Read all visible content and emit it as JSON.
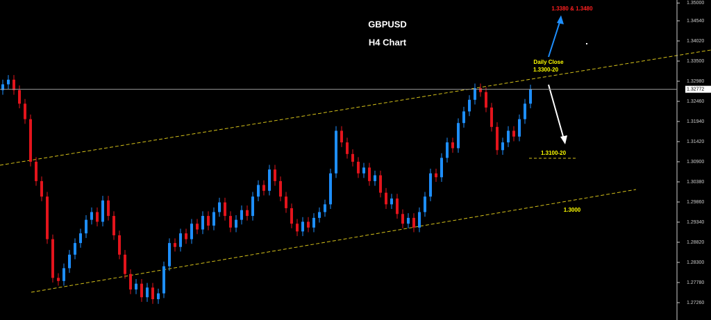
{
  "chart_data": {
    "type": "candlestick",
    "title": "GBPUSD",
    "subtitle": "H4 Chart",
    "up_color": "#1e8fff",
    "down_color": "#e3141c",
    "open": [
      1.3275,
      1.329,
      1.3302,
      1.3275,
      1.324,
      1.32,
      1.309,
      1.304,
      1.3,
      1.289,
      1.279,
      1.2782,
      1.2815,
      1.285,
      1.288,
      1.2905,
      1.294,
      1.296,
      1.2935,
      1.299,
      1.295,
      1.29,
      1.285,
      1.28,
      1.276,
      1.2775,
      1.274,
      1.2765,
      1.2735,
      1.275,
      1.282,
      1.288,
      1.287,
      1.2905,
      1.289,
      1.293,
      1.2915,
      1.295,
      1.2925,
      1.296,
      1.2985,
      1.295,
      1.292,
      1.294,
      1.2965,
      1.295,
      1.3,
      1.303,
      1.3015,
      1.307,
      1.304,
      1.3,
      1.297,
      1.293,
      1.291,
      1.2935,
      1.292,
      1.2945,
      1.296,
      1.298,
      1.306,
      1.317,
      1.314,
      1.311,
      1.309,
      1.306,
      1.3075,
      1.304,
      1.3055,
      1.301,
      1.298,
      1.2995,
      1.2955,
      1.293,
      1.2945,
      1.292,
      1.296,
      1.3,
      1.306,
      1.305,
      1.31,
      1.314,
      1.3125,
      1.319,
      1.322,
      1.325,
      1.328,
      1.327,
      1.323,
      1.318,
      1.312,
      1.314,
      1.317,
      1.3155,
      1.32,
      1.324
    ],
    "high": [
      1.3302,
      1.3314,
      1.3314,
      1.3287,
      1.3252,
      1.3212,
      1.3102,
      1.3052,
      1.3012,
      1.2902,
      1.2802,
      1.2827,
      1.2862,
      1.2892,
      1.2917,
      1.2952,
      1.2972,
      1.2972,
      1.3002,
      1.3002,
      1.2962,
      1.2912,
      1.2862,
      1.2812,
      1.2787,
      1.2787,
      1.2777,
      1.2777,
      1.2762,
      1.2832,
      1.2892,
      1.2892,
      1.2917,
      1.2917,
      1.2942,
      1.2942,
      1.2962,
      1.2962,
      1.2972,
      1.2997,
      1.2997,
      1.2962,
      1.2952,
      1.2977,
      1.2977,
      1.3012,
      1.3042,
      1.3042,
      1.3082,
      1.3082,
      1.3052,
      1.3012,
      1.2982,
      1.2942,
      1.2947,
      1.2947,
      1.2957,
      1.2972,
      1.2992,
      1.3072,
      1.3182,
      1.3182,
      1.3152,
      1.3122,
      1.3102,
      1.3087,
      1.3087,
      1.3067,
      1.3067,
      1.3022,
      1.3007,
      1.3007,
      1.2967,
      1.2957,
      1.2957,
      1.2972,
      1.3012,
      1.3072,
      1.3072,
      1.3112,
      1.3152,
      1.3152,
      1.3202,
      1.3232,
      1.3262,
      1.3292,
      1.3292,
      1.3282,
      1.3242,
      1.3192,
      1.3152,
      1.3182,
      1.3182,
      1.3212,
      1.3252,
      1.3289
    ],
    "low": [
      1.3263,
      1.3278,
      1.3263,
      1.3228,
      1.3188,
      1.3078,
      1.3028,
      1.2988,
      1.2878,
      1.2778,
      1.277,
      1.277,
      1.2803,
      1.2838,
      1.2868,
      1.2893,
      1.2928,
      1.2923,
      1.2923,
      1.2938,
      1.2888,
      1.2838,
      1.2788,
      1.2748,
      1.2748,
      1.2728,
      1.2728,
      1.2723,
      1.2723,
      1.2738,
      1.2808,
      1.2858,
      1.2858,
      1.2878,
      1.2878,
      1.2903,
      1.2903,
      1.2913,
      1.2913,
      1.2948,
      1.2938,
      1.2908,
      1.2908,
      1.2928,
      1.2938,
      1.2938,
      1.2988,
      1.3003,
      1.3003,
      1.3028,
      1.2988,
      1.2958,
      1.2918,
      1.2898,
      1.2898,
      1.2908,
      1.2908,
      1.2933,
      1.2948,
      1.2968,
      1.3048,
      1.3128,
      1.3098,
      1.3078,
      1.3048,
      1.3048,
      1.3028,
      1.3028,
      1.2998,
      1.2968,
      1.2968,
      1.2943,
      1.2918,
      1.2918,
      1.2908,
      1.2908,
      1.2948,
      1.2988,
      1.3038,
      1.3038,
      1.3088,
      1.3113,
      1.3113,
      1.3178,
      1.3208,
      1.3238,
      1.3258,
      1.3218,
      1.3168,
      1.3108,
      1.3108,
      1.3128,
      1.3143,
      1.3143,
      1.3188,
      1.3228
    ],
    "close": [
      1.329,
      1.3302,
      1.3275,
      1.324,
      1.32,
      1.309,
      1.304,
      1.3,
      1.289,
      1.279,
      1.2782,
      1.2815,
      1.285,
      1.288,
      1.2905,
      1.294,
      1.296,
      1.2935,
      1.299,
      1.295,
      1.29,
      1.285,
      1.28,
      1.276,
      1.2775,
      1.274,
      1.2765,
      1.2735,
      1.275,
      1.282,
      1.288,
      1.287,
      1.2905,
      1.289,
      1.293,
      1.2915,
      1.295,
      1.2925,
      1.296,
      1.2985,
      1.295,
      1.292,
      1.294,
      1.2965,
      1.295,
      1.3,
      1.303,
      1.3015,
      1.307,
      1.304,
      1.3,
      1.297,
      1.293,
      1.291,
      1.2935,
      1.292,
      1.2945,
      1.296,
      1.298,
      1.306,
      1.317,
      1.314,
      1.311,
      1.309,
      1.306,
      1.3075,
      1.304,
      1.3055,
      1.301,
      1.298,
      1.2995,
      1.2955,
      1.293,
      1.2945,
      1.292,
      1.296,
      1.3,
      1.306,
      1.305,
      1.31,
      1.314,
      1.3125,
      1.319,
      1.322,
      1.325,
      1.328,
      1.327,
      1.323,
      1.318,
      1.312,
      1.314,
      1.317,
      1.3155,
      1.32,
      1.324,
      1.3277
    ],
    "ylim": [
      1.26812,
      1.35078
    ],
    "yticks": [
      {
        "value": 1.35,
        "label": "1.35000"
      },
      {
        "value": 1.3454,
        "label": "1.34540"
      },
      {
        "value": 1.3402,
        "label": "1.34020"
      },
      {
        "value": 1.335,
        "label": "1.33500"
      },
      {
        "value": 1.3298,
        "label": "1.32980"
      },
      {
        "value": 1.3246,
        "label": "1.32460"
      },
      {
        "value": 1.3194,
        "label": "1.31940"
      },
      {
        "value": 1.3142,
        "label": "1.31420"
      },
      {
        "value": 1.309,
        "label": "1.30900"
      },
      {
        "value": 1.3038,
        "label": "1.30380"
      },
      {
        "value": 1.2986,
        "label": "1.29860"
      },
      {
        "value": 1.2934,
        "label": "1.29340"
      },
      {
        "value": 1.2882,
        "label": "1.28820"
      },
      {
        "value": 1.283,
        "label": "1.28300"
      },
      {
        "value": 1.2778,
        "label": "1.27780"
      },
      {
        "value": 1.2726,
        "label": "1.27260"
      }
    ],
    "current_price": 1.32772,
    "annotations": [
      "1.3380 & 1.3480",
      "Daily Close",
      "1.3300-20",
      "1.3100-20",
      "1.3000"
    ]
  }
}
